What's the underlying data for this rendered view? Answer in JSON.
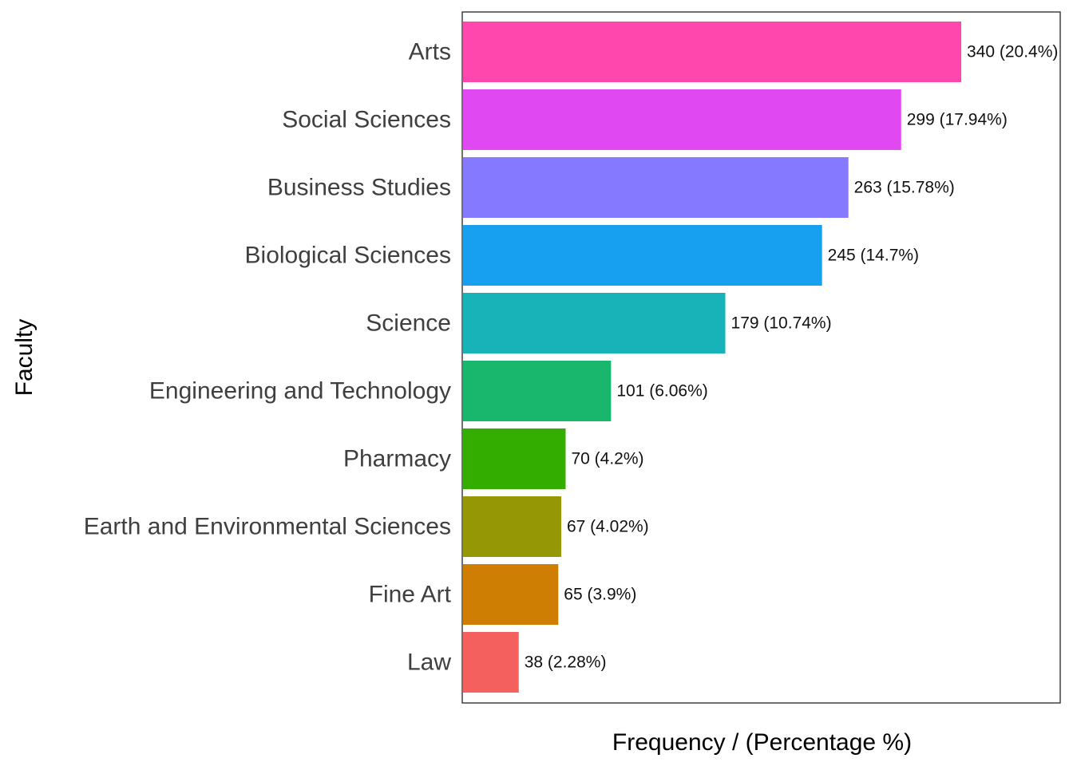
{
  "chart_data": {
    "type": "bar",
    "orientation": "horizontal",
    "title": "",
    "xlabel": "Frequency / (Percentage %)",
    "ylabel": "Faculty",
    "xlim": [
      0,
      340
    ],
    "grid": false,
    "legend": "none",
    "categories": [
      "Arts",
      "Social Sciences",
      "Business Studies",
      "Biological Sciences",
      "Science",
      "Engineering and Technology",
      "Pharmacy",
      "Earth and Environmental Sciences",
      "Fine Art",
      "Law"
    ],
    "values": [
      340,
      299,
      263,
      245,
      179,
      101,
      70,
      67,
      65,
      38
    ],
    "data_labels": [
      "340 (20.4%)",
      "299 (17.94%)",
      "263 (15.78%)",
      "245 (14.7%)",
      "179 (10.74%)",
      "101 (6.06%)",
      "70 (4.2%)",
      "67 (4.02%)",
      "65 (3.9%)",
      "38 (2.28%)"
    ],
    "colors": [
      "#FF47AE",
      "#E049F2",
      "#8479FF",
      "#16A0EF",
      "#17B3B9",
      "#19B66E",
      "#33AE00",
      "#959704",
      "#CF7E04",
      "#F3605D"
    ]
  }
}
